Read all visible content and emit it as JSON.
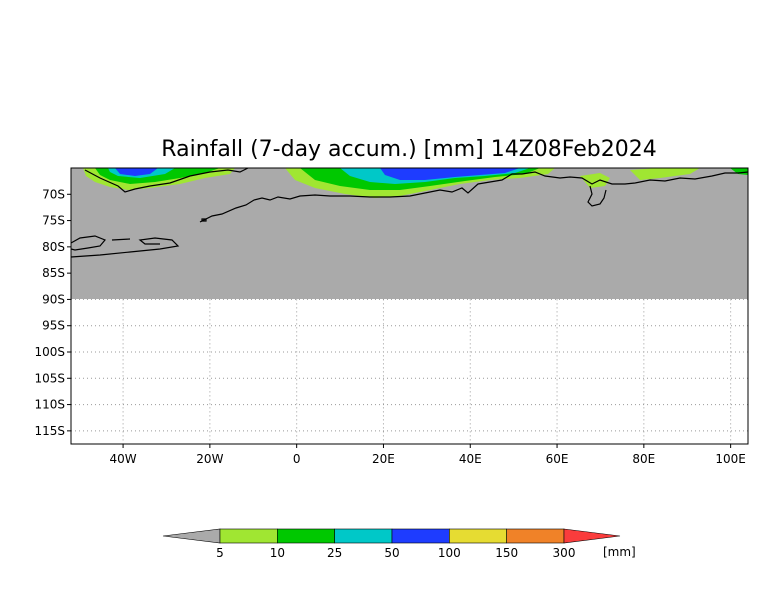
{
  "title": "Rainfall (7-day accum.) [mm] 14Z08Feb2024",
  "map": {
    "lon_range": [
      -52,
      104
    ],
    "lat_range": [
      -117.5,
      -65
    ],
    "land_mask_lat_limit": -90,
    "x_ticks": [
      {
        "value": -40,
        "label": "40W"
      },
      {
        "value": -20,
        "label": "20W"
      },
      {
        "value": 0,
        "label": "0"
      },
      {
        "value": 20,
        "label": "20E"
      },
      {
        "value": 40,
        "label": "40E"
      },
      {
        "value": 60,
        "label": "60E"
      },
      {
        "value": 80,
        "label": "80E"
      },
      {
        "value": 100,
        "label": "100E"
      }
    ],
    "y_ticks": [
      {
        "value": -70,
        "label": "70S"
      },
      {
        "value": -75,
        "label": "75S"
      },
      {
        "value": -80,
        "label": "80S"
      },
      {
        "value": -85,
        "label": "85S"
      },
      {
        "value": -90,
        "label": "90S"
      },
      {
        "value": -95,
        "label": "95S"
      },
      {
        "value": -100,
        "label": "100S"
      },
      {
        "value": -105,
        "label": "105S"
      },
      {
        "value": -110,
        "label": "110S"
      },
      {
        "value": -115,
        "label": "115S"
      }
    ],
    "grid": true,
    "colors": {
      "no_rain": "#aaaaaa",
      "c5": "#a0e632",
      "c10": "#00c800",
      "c25": "#00c8c8",
      "c50": "#1e3cff",
      "c100": "#e6dc32",
      "c150": "#f08228",
      "c300": "#fa3c3c"
    }
  },
  "colorbar": {
    "boundaries": [
      "5",
      "10",
      "25",
      "50",
      "100",
      "150",
      "300"
    ],
    "unit": "[mm]",
    "colors": [
      "#a0e632",
      "#00c800",
      "#00c8c8",
      "#1e3cff",
      "#e6dc32",
      "#f08228"
    ],
    "under_color": "#aaaaaa",
    "over_color": "#fa3c3c"
  }
}
